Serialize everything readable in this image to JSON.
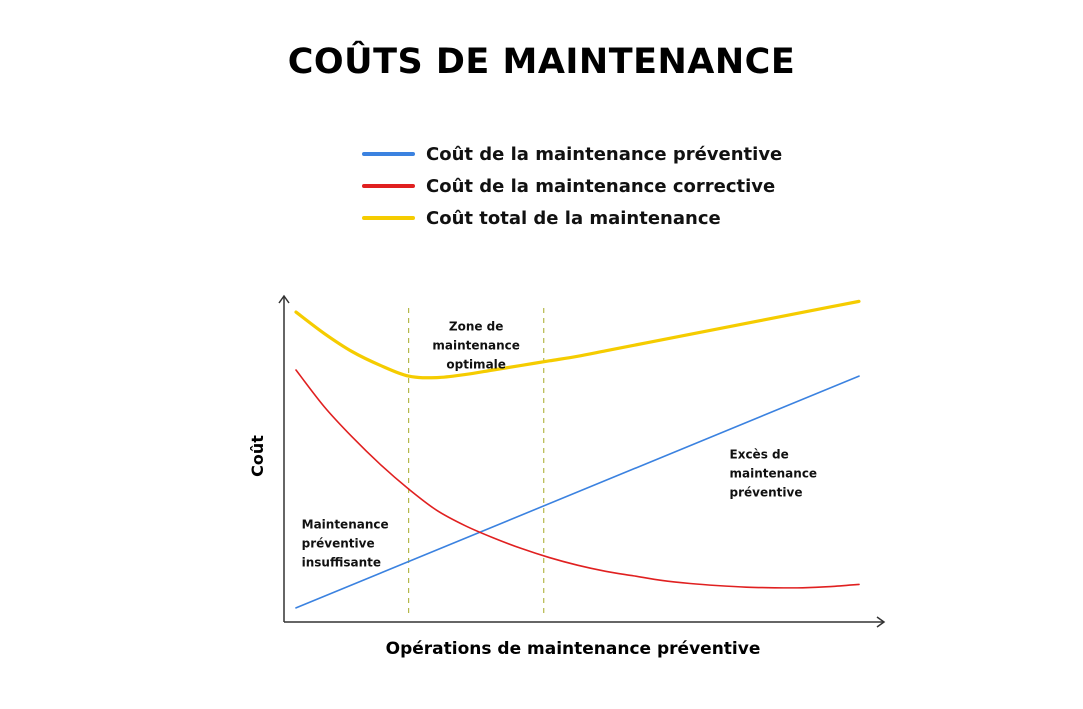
{
  "chart_data": {
    "type": "line",
    "title": "COÛTS DE MAINTENANCE",
    "xlabel": "Opérations de maintenance préventive",
    "ylabel": "Coût",
    "xlim": [
      0,
      100
    ],
    "ylim": [
      0,
      100
    ],
    "grid": false,
    "legend_position": "top",
    "series": [
      {
        "name": "Coût de la maintenance préventive",
        "color": "#3b82e0",
        "x": [
          0,
          100
        ],
        "y": [
          2,
          78
        ]
      },
      {
        "name": "Coût de la maintenance corrective",
        "color": "#e02020",
        "x": [
          0,
          5,
          10,
          15,
          20,
          25,
          30,
          35,
          40,
          45,
          50,
          55,
          60,
          65,
          70,
          75,
          80,
          85,
          90,
          95,
          100
        ],
        "y": [
          80,
          68,
          58,
          49,
          41,
          34,
          29,
          25,
          21.5,
          18.5,
          16,
          14,
          12.5,
          11,
          10,
          9.3,
          8.8,
          8.6,
          8.6,
          9,
          9.7
        ]
      },
      {
        "name": "Coût total de la maintenance",
        "color": "#f5cc00",
        "x": [
          0,
          5,
          10,
          15,
          20,
          25,
          30,
          35,
          40,
          45,
          50,
          55,
          60,
          65,
          70,
          75,
          80,
          85,
          90,
          95,
          100
        ],
        "y": [
          99,
          92,
          86,
          81.5,
          78,
          77.5,
          78.5,
          80,
          81.5,
          83,
          84.5,
          86.3,
          88.1,
          89.9,
          91.7,
          93.5,
          95.3,
          97.1,
          98.9,
          100.7,
          102.5
        ]
      }
    ],
    "zone_boundaries_x": [
      20,
      44
    ],
    "annotations": [
      {
        "lines": [
          "Zone de",
          "maintenance",
          "optimale"
        ],
        "x": 32,
        "y": 93
      },
      {
        "lines": [
          "Excès de",
          "maintenance",
          "préventive"
        ],
        "x": 77,
        "y": 51
      },
      {
        "lines": [
          "Maintenance",
          "préventive",
          "insuffisante"
        ],
        "x": 1,
        "y": 28
      }
    ]
  }
}
